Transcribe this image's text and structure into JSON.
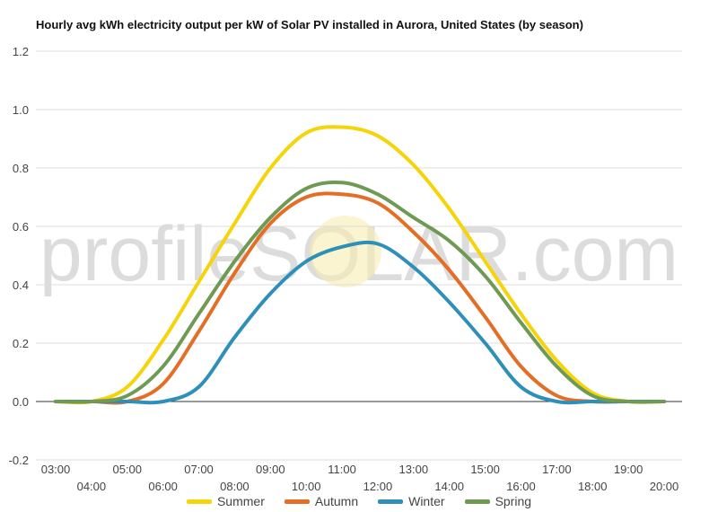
{
  "chart_data": {
    "type": "line",
    "title": "Hourly avg kWh electricity output per kW of Solar PV installed in Aurora, United States (by season)",
    "watermark": "profileSOLAR.com",
    "xlabel": "",
    "ylabel": "",
    "ylim": [
      -0.2,
      1.2
    ],
    "y_ticks": [
      -0.2,
      0.0,
      0.2,
      0.4,
      0.6,
      0.8,
      1.0,
      1.2
    ],
    "y_tick_labels": [
      "-0.2",
      "0.0",
      "0.2",
      "0.4",
      "0.6",
      "0.8",
      "1.0",
      "1.2"
    ],
    "x_categories": [
      "03:00",
      "04:00",
      "05:00",
      "06:00",
      "07:00",
      "08:00",
      "09:00",
      "10:00",
      "11:00",
      "12:00",
      "13:00",
      "14:00",
      "15:00",
      "16:00",
      "17:00",
      "18:00",
      "19:00",
      "20:00"
    ],
    "grid": true,
    "legend_position": "bottom",
    "series": [
      {
        "name": "Summer",
        "color": "#f5d40c",
        "values": [
          0.0,
          0.0,
          0.05,
          0.21,
          0.41,
          0.61,
          0.8,
          0.92,
          0.94,
          0.91,
          0.81,
          0.66,
          0.48,
          0.3,
          0.14,
          0.03,
          0.0,
          0.0
        ]
      },
      {
        "name": "Autumn",
        "color": "#e46e25",
        "values": [
          0.0,
          0.0,
          0.0,
          0.06,
          0.24,
          0.44,
          0.61,
          0.7,
          0.71,
          0.68,
          0.58,
          0.45,
          0.29,
          0.12,
          0.02,
          0.0,
          0.0,
          0.0
        ]
      },
      {
        "name": "Winter",
        "color": "#2e90b8",
        "values": [
          0.0,
          0.0,
          0.0,
          0.0,
          0.05,
          0.22,
          0.37,
          0.48,
          0.53,
          0.54,
          0.46,
          0.34,
          0.2,
          0.05,
          0.0,
          0.0,
          0.0,
          0.0
        ]
      },
      {
        "name": "Spring",
        "color": "#6f9a54",
        "values": [
          0.0,
          0.0,
          0.02,
          0.12,
          0.3,
          0.48,
          0.63,
          0.73,
          0.75,
          0.71,
          0.63,
          0.55,
          0.43,
          0.27,
          0.12,
          0.02,
          0.0,
          0.0
        ]
      }
    ]
  }
}
